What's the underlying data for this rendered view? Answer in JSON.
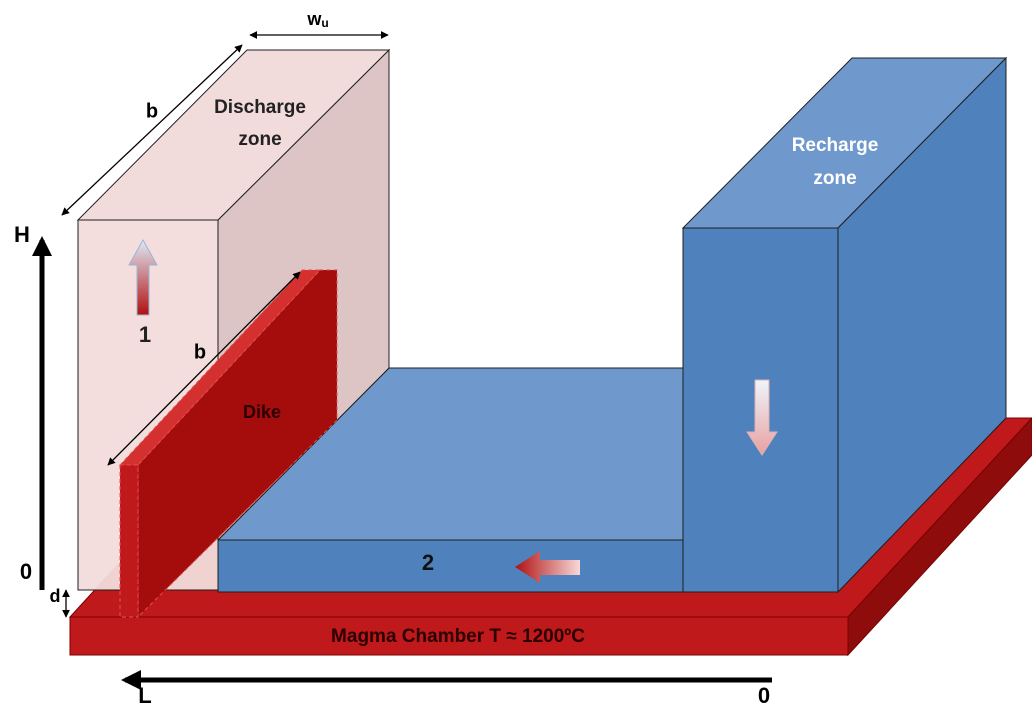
{
  "dimensions": {
    "width": {
      "symbol": "w",
      "subscript": "u"
    },
    "depth": "b",
    "dike_length": "b",
    "height": "H",
    "height_origin": "0",
    "depth_below": "d",
    "length": "L",
    "length_origin": "0"
  },
  "zones": {
    "discharge": [
      "Discharge",
      "zone"
    ],
    "recharge": [
      "Recharge",
      "zone"
    ],
    "dike": "Dike",
    "magma": "Magma Chamber T ≈ 1200ºC"
  },
  "flow_markers": {
    "upflow": "1",
    "lateral": "2"
  }
}
